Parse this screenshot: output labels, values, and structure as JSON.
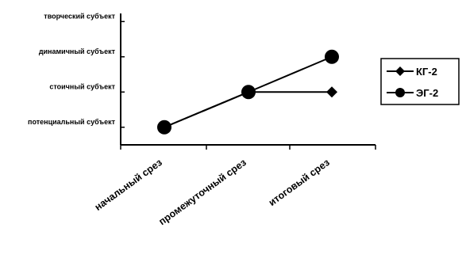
{
  "chart_data": {
    "type": "line",
    "categories": [
      "начальный срез",
      "промежуточный срез",
      "итоговый срез"
    ],
    "y_levels": [
      "потенциальный субъект",
      "стоичный субъект",
      "динамичный субъект",
      "творческий субъект"
    ],
    "ylim": [
      0.5,
      4.5
    ],
    "series": [
      {
        "name": "КГ-2",
        "marker": "diamond",
        "values": [
          1,
          2,
          2
        ]
      },
      {
        "name": "ЭГ-2",
        "marker": "circle",
        "values": [
          1,
          2,
          3
        ]
      }
    ],
    "legend": "right",
    "grid": false,
    "colors": {
      "line": "#000000",
      "marker": "#000000"
    }
  }
}
